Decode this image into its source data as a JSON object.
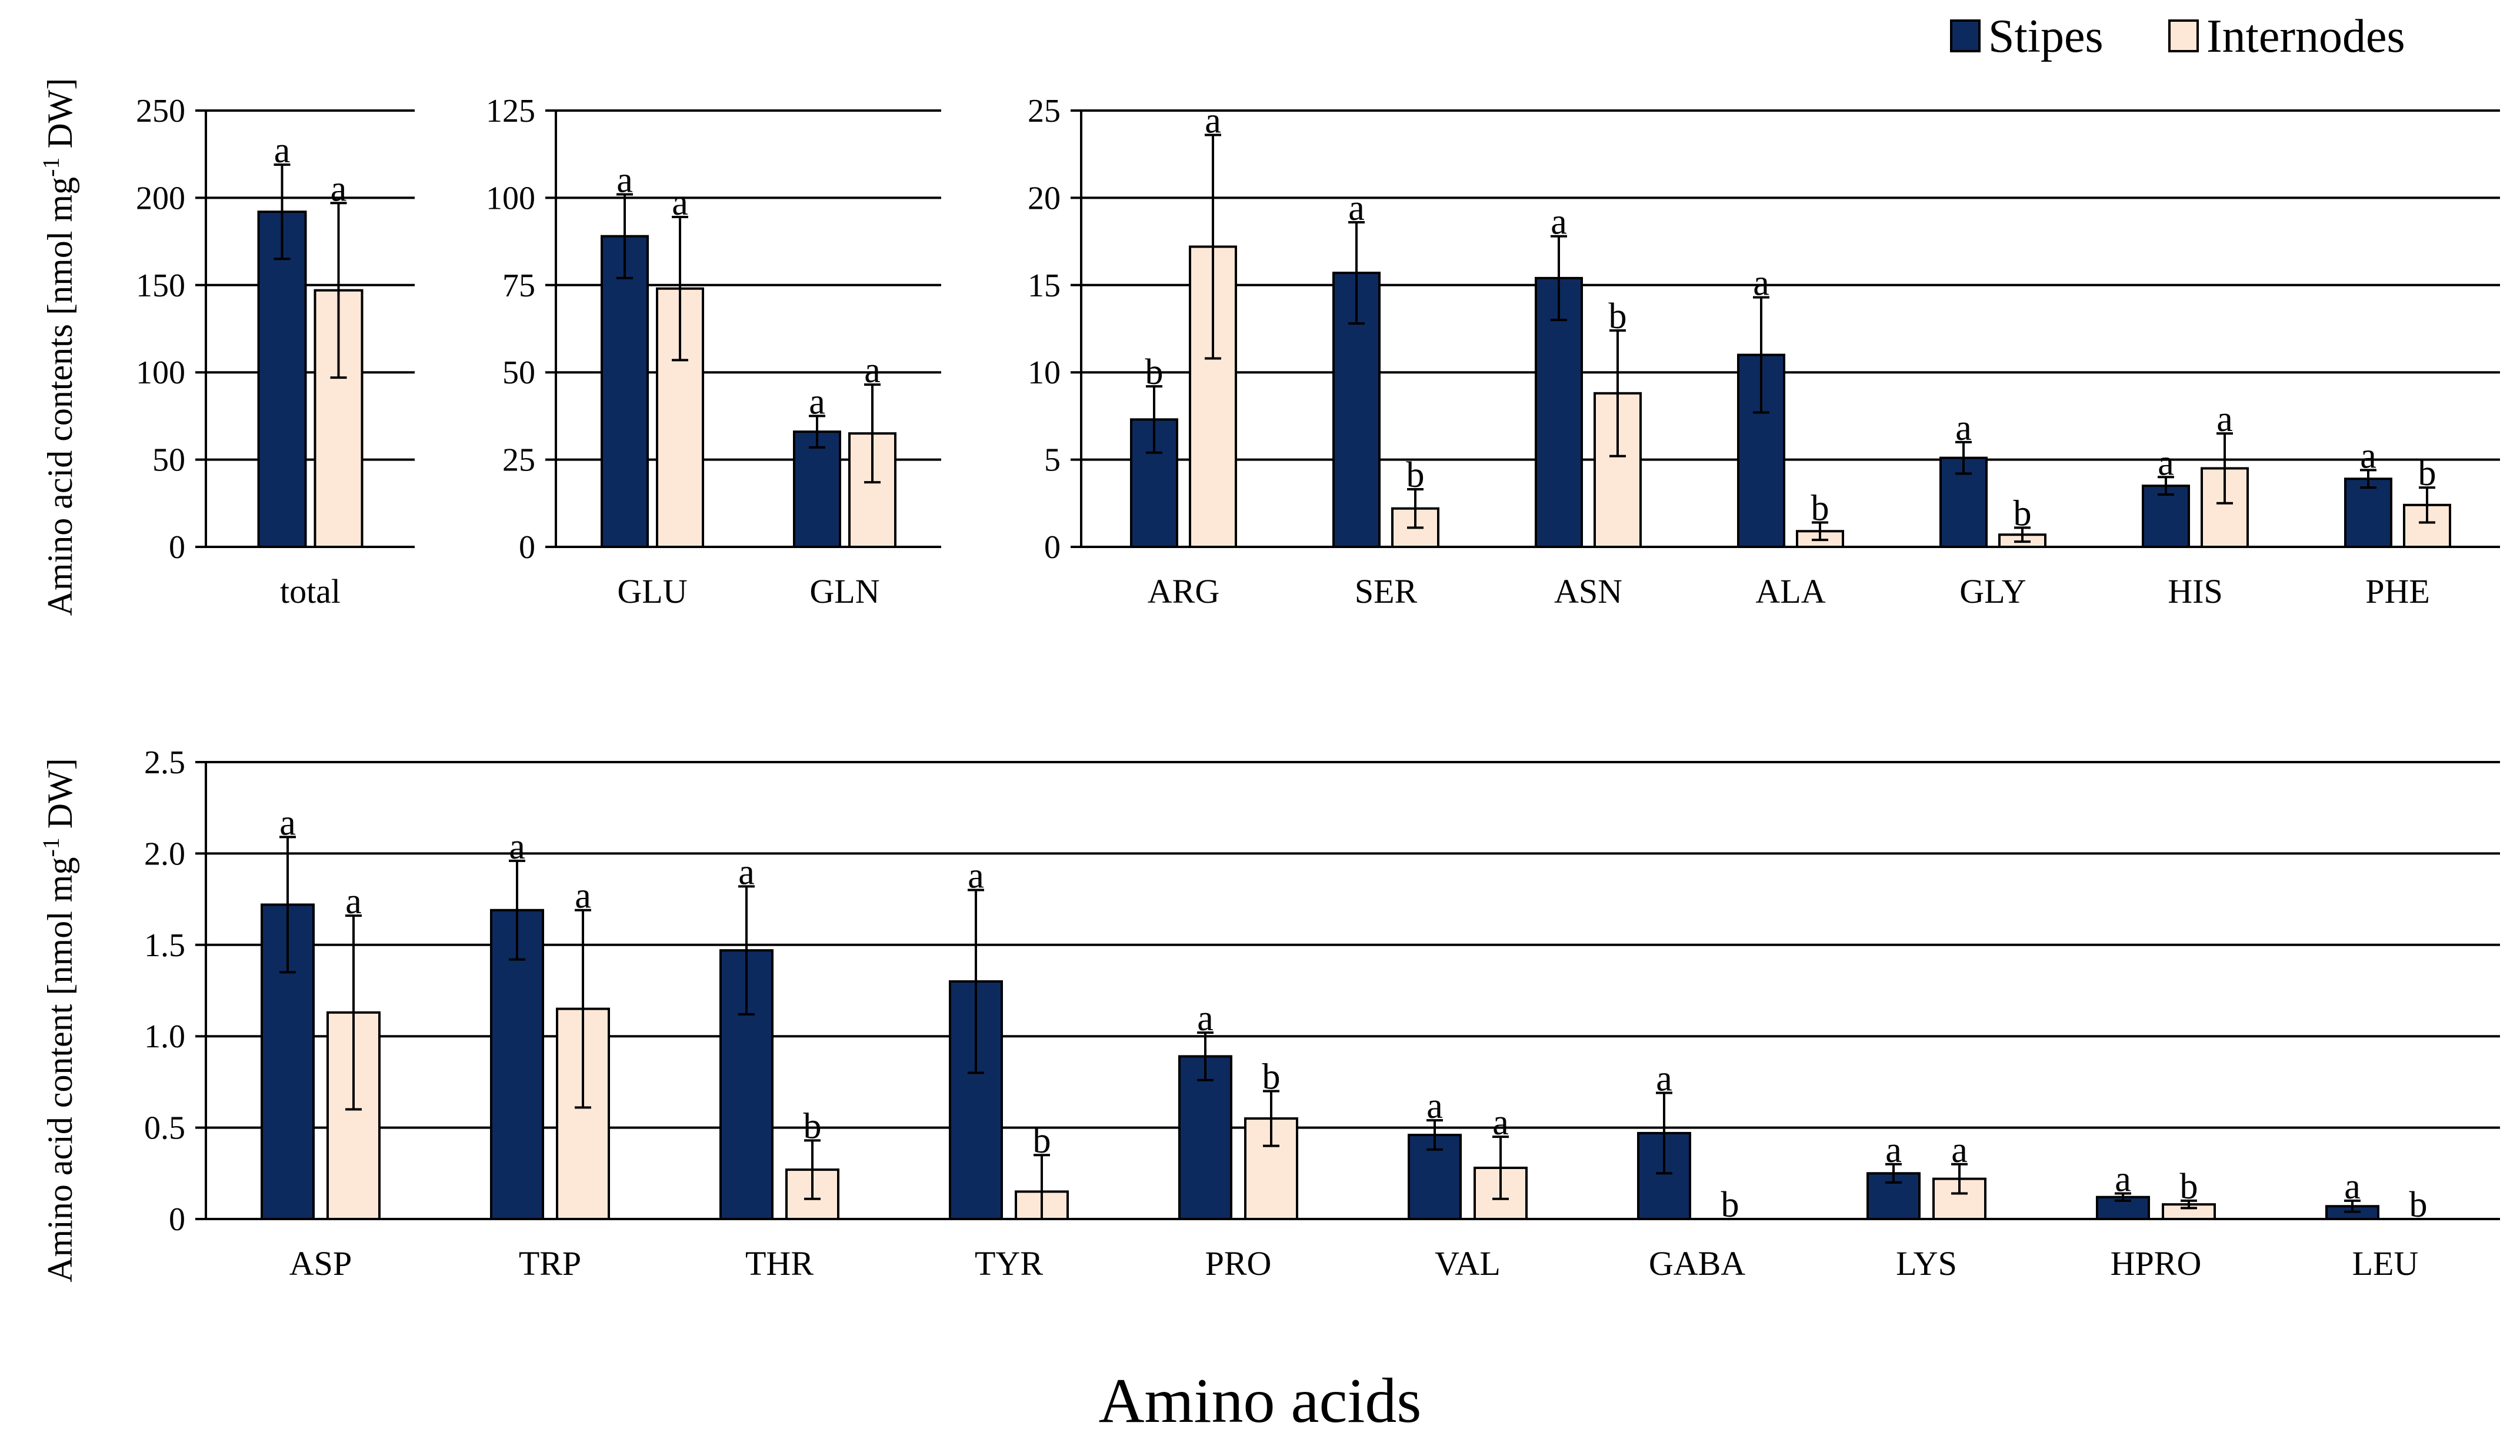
{
  "colors": {
    "stipes": "#0d2a5e",
    "internodes": "#fde8d8",
    "axis": "#000000",
    "grid": "#000000"
  },
  "legend": {
    "position": "top-right",
    "items": [
      {
        "label": "Stipes",
        "color": "#0d2a5e"
      },
      {
        "label": "Internodes",
        "color": "#fde8d8"
      }
    ]
  },
  "xlabel": "Amino acids",
  "chart_data": [
    {
      "type": "bar",
      "panel": "top-left",
      "ylabel": "Amino acid contents [nmol mg-1 DW]",
      "ylabel_parts": {
        "pre": "Amino acid contents [nmol mg",
        "sup": "-1",
        "post": " DW]"
      },
      "ylim": [
        0,
        250
      ],
      "yticks": [
        0,
        50,
        100,
        150,
        200,
        250
      ],
      "categories": [
        "total"
      ],
      "series": [
        {
          "name": "Stipes",
          "values": [
            192
          ],
          "errors": [
            27
          ],
          "letters": [
            "a"
          ]
        },
        {
          "name": "Internodes",
          "values": [
            147
          ],
          "errors": [
            50
          ],
          "letters": [
            "a"
          ]
        }
      ]
    },
    {
      "type": "bar",
      "panel": "top-middle",
      "ylim": [
        0,
        125
      ],
      "yticks": [
        0,
        25,
        50,
        75,
        100,
        125
      ],
      "categories": [
        "GLU",
        "GLN"
      ],
      "series": [
        {
          "name": "Stipes",
          "values": [
            89,
            33
          ],
          "errors": [
            12,
            4.5
          ],
          "letters": [
            "a",
            "a"
          ]
        },
        {
          "name": "Internodes",
          "values": [
            74,
            32.5
          ],
          "errors": [
            20.5,
            14
          ],
          "letters": [
            "a",
            "a"
          ]
        }
      ]
    },
    {
      "type": "bar",
      "panel": "top-right",
      "ylim": [
        0,
        25
      ],
      "yticks": [
        0,
        5,
        10,
        15,
        20,
        25
      ],
      "categories": [
        "ARG",
        "SER",
        "ASN",
        "ALA",
        "GLY",
        "HIS",
        "PHE"
      ],
      "series": [
        {
          "name": "Stipes",
          "values": [
            7.3,
            15.7,
            15.4,
            11.0,
            5.1,
            3.5,
            3.9
          ],
          "errors": [
            1.9,
            2.9,
            2.4,
            3.3,
            0.9,
            0.5,
            0.5
          ],
          "letters": [
            "b",
            "a",
            "a",
            "a",
            "a",
            "a",
            "a"
          ]
        },
        {
          "name": "Internodes",
          "values": [
            17.2,
            2.2,
            8.8,
            0.9,
            0.7,
            4.5,
            2.4
          ],
          "errors": [
            6.4,
            1.1,
            3.6,
            0.5,
            0.4,
            2.0,
            1.0
          ],
          "letters": [
            "a",
            "b",
            "b",
            "b",
            "b",
            "a",
            "b"
          ]
        }
      ]
    },
    {
      "type": "bar",
      "panel": "bottom",
      "ylabel": "Amino acid content [nmol mg-1 DW]",
      "ylabel_parts": {
        "pre": "Amino acid content [nmol mg",
        "sup": "-1",
        "post": " DW]"
      },
      "ylim": [
        0,
        2.5
      ],
      "yticks": [
        "0",
        "0.5",
        "1.0",
        "1.5",
        "2.0",
        "2.5"
      ],
      "categories": [
        "ASP",
        "TRP",
        "THR",
        "TYR",
        "PRO",
        "VAL",
        "GABA",
        "LYS",
        "HPRO",
        "LEU"
      ],
      "series": [
        {
          "name": "Stipes",
          "values": [
            1.72,
            1.69,
            1.47,
            1.3,
            0.89,
            0.46,
            0.47,
            0.25,
            0.12,
            0.07
          ],
          "errors": [
            0.37,
            0.27,
            0.35,
            0.5,
            0.13,
            0.08,
            0.22,
            0.05,
            0.02,
            0.03
          ],
          "letters": [
            "a",
            "a",
            "a",
            "a",
            "a",
            "a",
            "a",
            "a",
            "a",
            "a"
          ]
        },
        {
          "name": "Internodes",
          "values": [
            1.13,
            1.15,
            0.27,
            0.15,
            0.55,
            0.28,
            0.0,
            0.22,
            0.08,
            0.0
          ],
          "errors": [
            0.53,
            0.54,
            0.16,
            0.2,
            0.15,
            0.17,
            0.0,
            0.08,
            0.02,
            0.0
          ],
          "letters": [
            "a",
            "a",
            "b",
            "b",
            "b",
            "a",
            "b",
            "a",
            "b",
            "b"
          ]
        }
      ]
    }
  ]
}
